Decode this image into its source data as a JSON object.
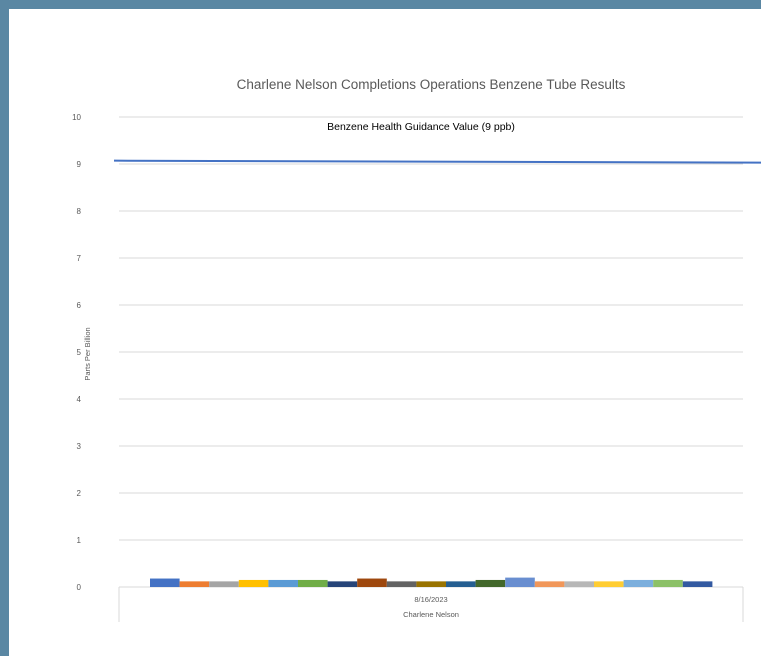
{
  "chart_data": {
    "type": "bar",
    "title": "Charlene Nelson Completions Operations Benzene Tube Results",
    "ylabel": "Parts Per Billion",
    "ylim": [
      0,
      10
    ],
    "yticks": [
      "0",
      "1",
      "2",
      "3",
      "4",
      "5",
      "6",
      "7",
      "8",
      "9",
      "10"
    ],
    "grid": true,
    "categories": [
      "8/16/2023"
    ],
    "group_label": "Charlene Nelson",
    "series": [
      {
        "values": [
          0.18
        ],
        "color": "#4472c4"
      },
      {
        "values": [
          0.12
        ],
        "color": "#ed7d31"
      },
      {
        "values": [
          0.12
        ],
        "color": "#a5a5a5"
      },
      {
        "values": [
          0.15
        ],
        "color": "#ffc000"
      },
      {
        "values": [
          0.15
        ],
        "color": "#5b9bd5"
      },
      {
        "values": [
          0.15
        ],
        "color": "#70ad47"
      },
      {
        "values": [
          0.12
        ],
        "color": "#264478"
      },
      {
        "values": [
          0.18
        ],
        "color": "#9e480e"
      },
      {
        "values": [
          0.12
        ],
        "color": "#636363"
      },
      {
        "values": [
          0.12
        ],
        "color": "#997300"
      },
      {
        "values": [
          0.12
        ],
        "color": "#255e91"
      },
      {
        "values": [
          0.15
        ],
        "color": "#43682b"
      },
      {
        "values": [
          0.2
        ],
        "color": "#698ed0"
      },
      {
        "values": [
          0.12
        ],
        "color": "#f1975a"
      },
      {
        "values": [
          0.12
        ],
        "color": "#b7b7b7"
      },
      {
        "values": [
          0.12
        ],
        "color": "#ffcd33"
      },
      {
        "values": [
          0.15
        ],
        "color": "#7cafdd"
      },
      {
        "values": [
          0.15
        ],
        "color": "#8cc168"
      },
      {
        "values": [
          0.12
        ],
        "color": "#335aa1"
      }
    ],
    "reference_line": {
      "value": 9.05,
      "label": "Benzene Health Guidance Value (9 ppb)",
      "color": "#4472c4"
    },
    "gridline_color": "#d9d9d9"
  }
}
